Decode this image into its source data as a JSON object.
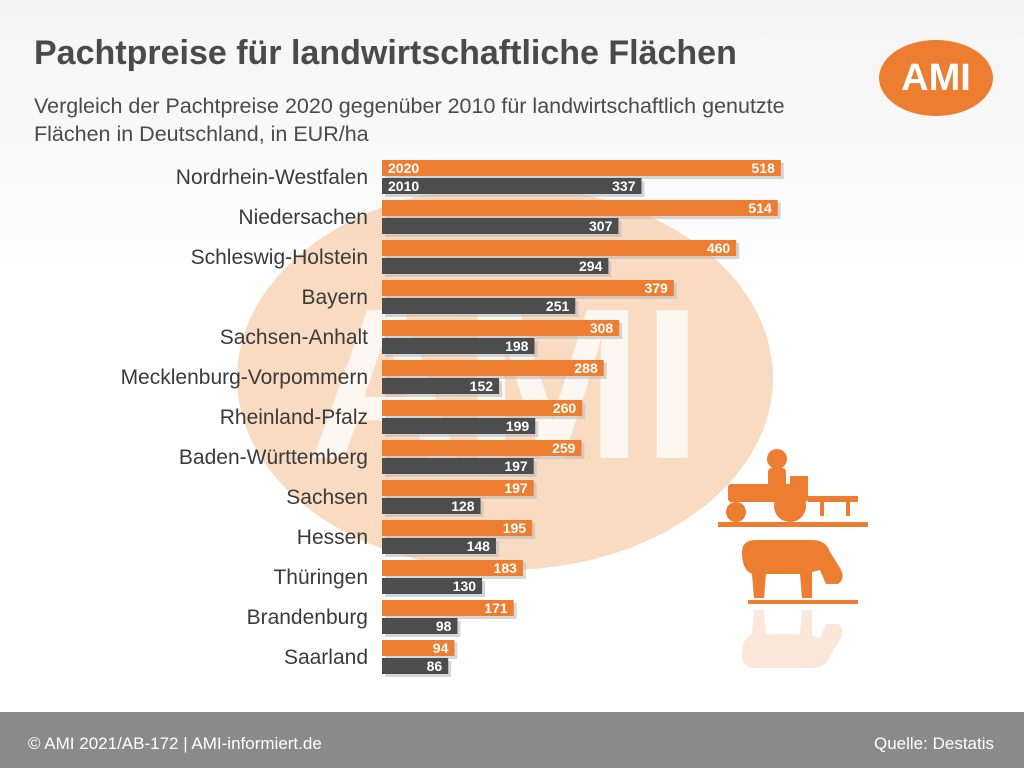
{
  "header": {
    "title": "Pachtpreise für landwirtschaftliche Flächen",
    "subtitle": "Vergleich der Pachtpreise 2020 gegenüber 2010 für landwirtschaftlich genutzte Flächen in Deutschland, in EUR/ha",
    "logo_text": "AMI"
  },
  "watermark_text": "AMI",
  "colors": {
    "series_2020": "#ed7d31",
    "series_2010": "#4d4d4d",
    "watermark": "#f7cfae",
    "silhouettes": "#ed7d31",
    "footer": "#8a8a8a"
  },
  "icons": [
    "tractor-farmer-icon",
    "grazing-cow-icon"
  ],
  "chart_data": {
    "type": "bar",
    "orientation": "horizontal",
    "title": "Pachtpreise für landwirtschaftliche Flächen",
    "unit": "EUR/ha",
    "categories": [
      "Nordrhein-Westfalen",
      "Niedersachen",
      "Schleswig-Holstein",
      "Bayern",
      "Sachsen-Anhalt",
      "Mecklenburg-Vorpommern",
      "Rheinland-Pfalz",
      "Baden-Württemberg",
      "Sachsen",
      "Hessen",
      "Thüringen",
      "Brandenburg",
      "Saarland"
    ],
    "series": [
      {
        "name": "2020",
        "values": [
          518,
          514,
          460,
          379,
          308,
          288,
          260,
          259,
          197,
          195,
          183,
          171,
          94
        ]
      },
      {
        "name": "2010",
        "values": [
          337,
          307,
          294,
          251,
          198,
          152,
          199,
          197,
          128,
          148,
          130,
          98,
          86
        ]
      }
    ],
    "data_labels": true,
    "grid": false,
    "legend": "inline labels in first bar pair"
  },
  "footer": {
    "left": "© AMI 2021/AB-172 | AMI-informiert.de",
    "right": "Quelle: Destatis"
  }
}
